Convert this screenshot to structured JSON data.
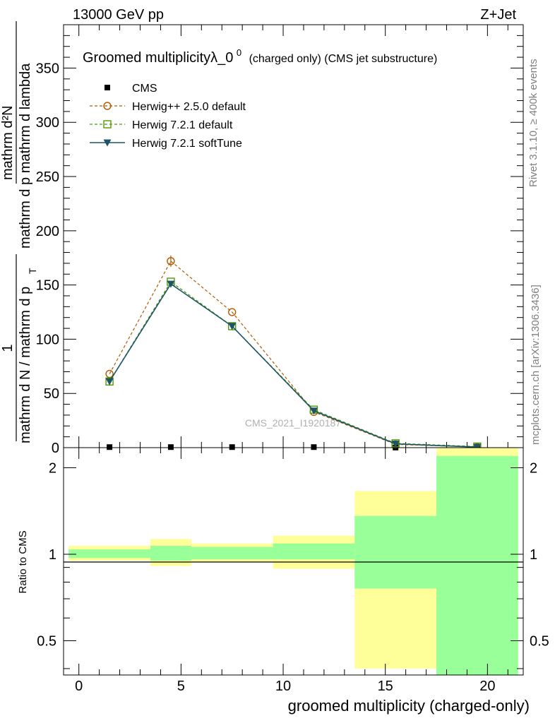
{
  "header": {
    "left": "13000 GeV pp",
    "right": "Z+Jet"
  },
  "side_labels": {
    "rivet": "Rivet 3.1.10, ≥ 400k events",
    "mcplots": "mcplots.cern.ch [arXiv:1306.3436]"
  },
  "chart_data": {
    "type": "line",
    "title": "Groomed multiplicityλ_0",
    "title_sup": "0",
    "title_suffix": "(charged only) (CMS jet substructure)",
    "watermark": "CMS_2021_I1920187",
    "xlabel": "groomed multiplicity (charged-only)",
    "ylabel_num": "mathrm d²N",
    "ylabel_left_line1": "mathrm d N / mathrm d p",
    "ylabel_left_line2": "mathrm d p  mathrm d lambda",
    "ylabel_sub": "T",
    "ylabel_one": "1",
    "xlim": [
      -0.75,
      21.75
    ],
    "ylim": [
      0,
      390
    ],
    "x_ticks": [
      0,
      5,
      10,
      15,
      20
    ],
    "y_ticks": [
      50,
      100,
      150,
      200,
      250,
      300,
      350
    ],
    "y_tick_zero_label": "0",
    "bin_edges": [
      -0.5,
      3.5,
      5.5,
      9.5,
      13.5,
      17.5,
      21.5
    ],
    "x": [
      1.5,
      4.5,
      7.5,
      11.5,
      15.5,
      19.5
    ],
    "series": [
      {
        "name": "CMS",
        "color": "#000000",
        "marker": "square-filled",
        "dash": "none",
        "values": [
          0.5,
          0.5,
          0.5,
          0.5,
          0.1,
          0.05
        ]
      },
      {
        "name": "Herwig++ 2.5.0 default",
        "color": "#b35900",
        "marker": "circle-open",
        "dash": "4,3",
        "values": [
          68,
          172,
          125,
          33,
          3,
          0.5
        ]
      },
      {
        "name": "Herwig 7.2.1 default",
        "color": "#4e9a06",
        "marker": "square-open",
        "dash": "4,3",
        "values": [
          61,
          153,
          112,
          35,
          4,
          1
        ]
      },
      {
        "name": "Herwig 7.2.1 softTune",
        "color": "#1b5566",
        "marker": "triangle-down",
        "dash": "none",
        "values": [
          61,
          151,
          112,
          34,
          3.5,
          0.5
        ]
      }
    ],
    "ratio": {
      "ylabel": "Ratio to CMS",
      "ylim": [
        0.38,
        2.35
      ],
      "y_ticks": [
        0.5,
        1,
        2
      ],
      "y_tick_labels": [
        "0.5",
        "1",
        "2"
      ],
      "reference": 1,
      "yellow_band": [
        [
          0.95,
          1.07
        ],
        [
          0.91,
          1.13
        ],
        [
          0.94,
          1.09
        ],
        [
          0.89,
          1.16
        ],
        [
          0.4,
          1.66
        ],
        [
          0.3,
          2.5
        ]
      ],
      "green_band": [
        [
          0.97,
          1.04
        ],
        [
          0.95,
          1.07
        ],
        [
          0.96,
          1.06
        ],
        [
          0.96,
          1.09
        ],
        [
          0.76,
          1.36
        ],
        [
          0.35,
          2.2
        ]
      ],
      "yellow_color": "#ffff99",
      "green_color": "#99ff99"
    }
  }
}
